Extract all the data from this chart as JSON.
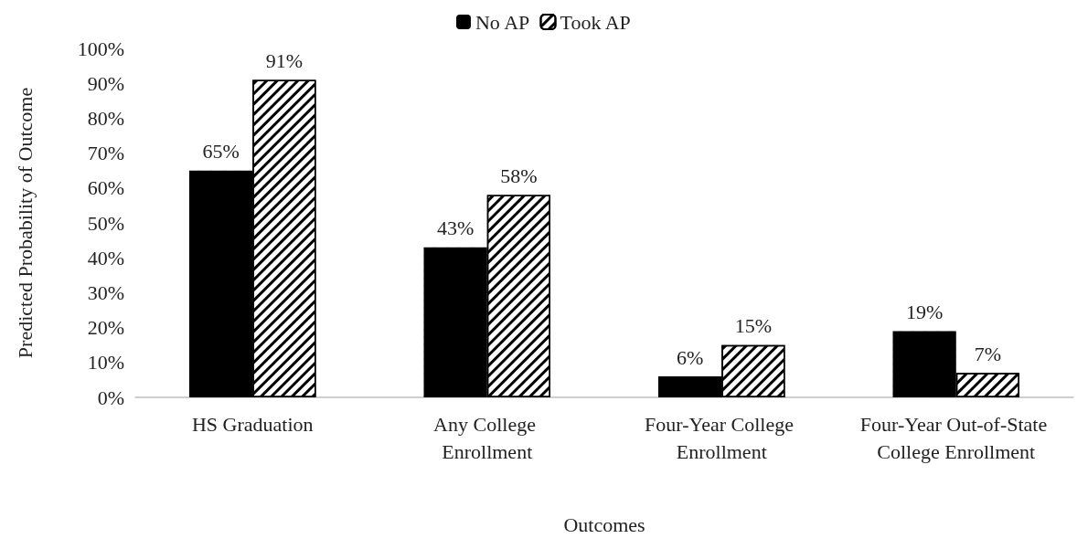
{
  "chart_data": {
    "type": "bar",
    "xlabel": "Outcomes",
    "ylabel": "Predicted Probability of Outcome",
    "categories": [
      "HS Graduation",
      "Any College Enrollment",
      "Four-Year College Enrollment",
      "Four-Year Out-of-State College Enrollment"
    ],
    "series": [
      {
        "name": "No AP",
        "color": "#000000",
        "values": [
          65,
          43,
          6,
          19
        ],
        "value_labels": [
          "65%",
          "43%",
          "6%",
          "19%"
        ]
      },
      {
        "name": "Took AP",
        "color": "#ffffff",
        "values": [
          91,
          58,
          15,
          7
        ],
        "value_labels": [
          "91%",
          "58%",
          "15%",
          "7%"
        ]
      }
    ],
    "ylim": [
      0,
      100
    ],
    "yticks": [
      {
        "value": 0,
        "label": "0%"
      },
      {
        "value": 10,
        "label": "10%"
      },
      {
        "value": 20,
        "label": "20%"
      },
      {
        "value": 30,
        "label": "30%"
      },
      {
        "value": 40,
        "label": "40%"
      },
      {
        "value": 50,
        "label": "50%"
      },
      {
        "value": 60,
        "label": "60%"
      },
      {
        "value": 70,
        "label": "70%"
      },
      {
        "value": 80,
        "label": "80%"
      },
      {
        "value": 90,
        "label": "90%"
      },
      {
        "value": 100,
        "label": "100%"
      }
    ],
    "grid": false,
    "legend": "top"
  }
}
